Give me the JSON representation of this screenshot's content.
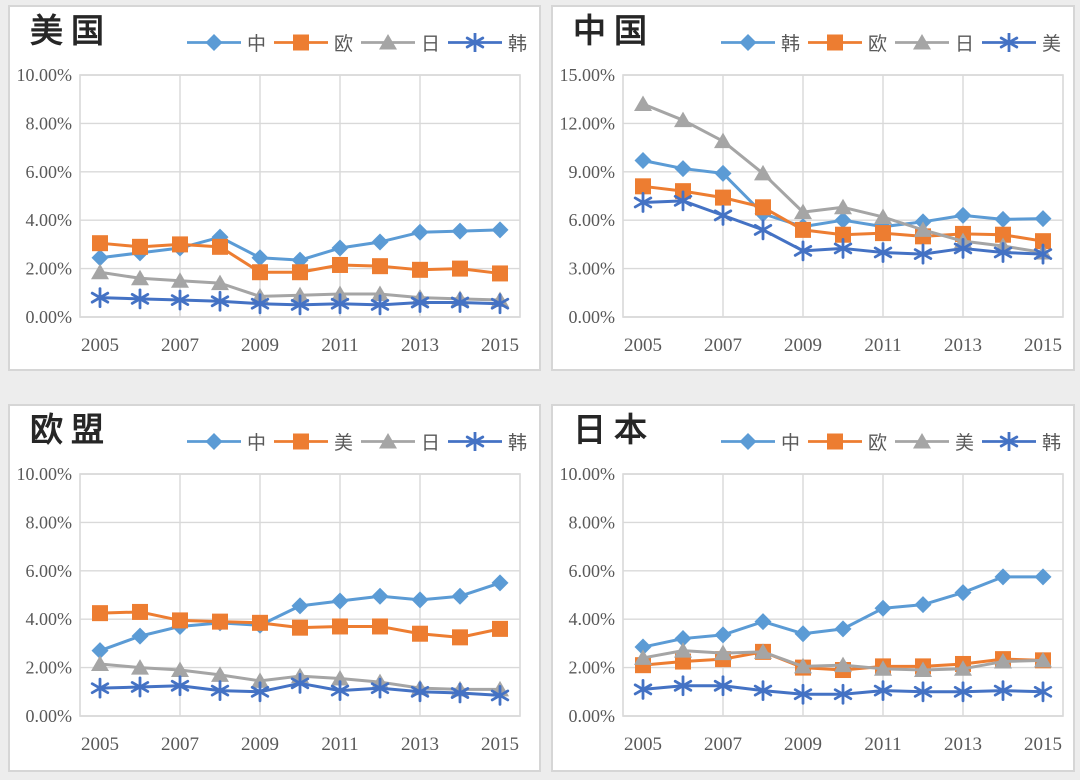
{
  "page": {
    "background_color": "#ededed",
    "panel_background": "#ffffff",
    "panel_border_color": "#d6d6d6",
    "gridline_color": "#d9d9d9",
    "axis_text_color": "#595959",
    "title_text_color": "#262626"
  },
  "chart_data": [
    {
      "panel": "top-left",
      "title": "美国",
      "type": "line",
      "grid": true,
      "legend_position": "top-right",
      "x": [
        2005,
        2006,
        2007,
        2008,
        2009,
        2010,
        2011,
        2012,
        2013,
        2014,
        2015
      ],
      "x_tick_labels": [
        "2005",
        "2007",
        "2009",
        "2011",
        "2013",
        "2015"
      ],
      "ylim": [
        0,
        10
      ],
      "y_tick_step": 2,
      "y_tick_labels": [
        "0.00%",
        "2.00%",
        "4.00%",
        "6.00%",
        "8.00%",
        "10.00%"
      ],
      "series": [
        {
          "name": "中",
          "color": "#5B9BD5",
          "marker": "diamond",
          "values": [
            2.45,
            2.65,
            2.85,
            3.3,
            2.45,
            2.35,
            2.85,
            3.1,
            3.5,
            3.55,
            3.6
          ]
        },
        {
          "name": "欧",
          "color": "#ED7D31",
          "marker": "square",
          "values": [
            3.05,
            2.9,
            3.0,
            2.9,
            1.85,
            1.85,
            2.15,
            2.1,
            1.95,
            2.0,
            1.8
          ]
        },
        {
          "name": "日",
          "color": "#A5A5A5",
          "marker": "triangle",
          "values": [
            1.85,
            1.6,
            1.5,
            1.4,
            0.85,
            0.9,
            0.95,
            0.95,
            0.8,
            0.75,
            0.7
          ]
        },
        {
          "name": "韩",
          "color": "#4472C4",
          "marker": "asterisk",
          "values": [
            0.8,
            0.75,
            0.7,
            0.65,
            0.55,
            0.5,
            0.55,
            0.5,
            0.6,
            0.6,
            0.55
          ]
        }
      ]
    },
    {
      "panel": "top-right",
      "title": "中国",
      "type": "line",
      "grid": true,
      "legend_position": "top-right",
      "x": [
        2005,
        2006,
        2007,
        2008,
        2009,
        2010,
        2011,
        2012,
        2013,
        2014,
        2015
      ],
      "x_tick_labels": [
        "2005",
        "2007",
        "2009",
        "2011",
        "2013",
        "2015"
      ],
      "ylim": [
        0,
        15
      ],
      "y_tick_step": 3,
      "y_tick_labels": [
        "0.00%",
        "3.00%",
        "6.00%",
        "9.00%",
        "12.00%",
        "15.00%"
      ],
      "series": [
        {
          "name": "韩",
          "color": "#5B9BD5",
          "marker": "diamond",
          "values": [
            9.7,
            9.2,
            8.9,
            6.4,
            5.6,
            6.0,
            5.6,
            5.9,
            6.3,
            6.05,
            6.1
          ]
        },
        {
          "name": "欧",
          "color": "#ED7D31",
          "marker": "square",
          "values": [
            8.1,
            7.8,
            7.4,
            6.8,
            5.4,
            5.1,
            5.2,
            5.0,
            5.15,
            5.1,
            4.7
          ]
        },
        {
          "name": "日",
          "color": "#A5A5A5",
          "marker": "triangle",
          "values": [
            13.2,
            12.2,
            10.9,
            8.9,
            6.5,
            6.8,
            6.2,
            5.4,
            4.7,
            4.4,
            4.0
          ]
        },
        {
          "name": "美",
          "color": "#4472C4",
          "marker": "asterisk",
          "values": [
            7.1,
            7.2,
            6.3,
            5.4,
            4.1,
            4.25,
            4.0,
            3.9,
            4.25,
            4.0,
            3.9
          ]
        }
      ]
    },
    {
      "panel": "bottom-left",
      "title": "欧盟",
      "type": "line",
      "grid": true,
      "legend_position": "top-right",
      "x": [
        2005,
        2006,
        2007,
        2008,
        2009,
        2010,
        2011,
        2012,
        2013,
        2014,
        2015
      ],
      "x_tick_labels": [
        "2005",
        "2007",
        "2009",
        "2011",
        "2013",
        "2015"
      ],
      "ylim": [
        0,
        10
      ],
      "y_tick_step": 2,
      "y_tick_labels": [
        "0.00%",
        "2.00%",
        "4.00%",
        "6.00%",
        "8.00%",
        "10.00%"
      ],
      "series": [
        {
          "name": "中",
          "color": "#5B9BD5",
          "marker": "diamond",
          "values": [
            2.7,
            3.3,
            3.7,
            3.85,
            3.75,
            4.55,
            4.75,
            4.95,
            4.8,
            4.95,
            5.5
          ]
        },
        {
          "name": "美",
          "color": "#ED7D31",
          "marker": "square",
          "values": [
            4.25,
            4.3,
            3.95,
            3.9,
            3.85,
            3.65,
            3.7,
            3.7,
            3.4,
            3.25,
            3.6
          ]
        },
        {
          "name": "日",
          "color": "#A5A5A5",
          "marker": "triangle",
          "values": [
            2.15,
            2.0,
            1.9,
            1.7,
            1.45,
            1.65,
            1.55,
            1.4,
            1.15,
            1.1,
            1.1
          ]
        },
        {
          "name": "韩",
          "color": "#4472C4",
          "marker": "asterisk",
          "values": [
            1.15,
            1.2,
            1.25,
            1.05,
            1.0,
            1.35,
            1.05,
            1.15,
            1.0,
            0.95,
            0.85
          ]
        }
      ]
    },
    {
      "panel": "bottom-right",
      "title": "日本",
      "type": "line",
      "grid": true,
      "legend_position": "top-right",
      "x": [
        2005,
        2006,
        2007,
        2008,
        2009,
        2010,
        2011,
        2012,
        2013,
        2014,
        2015
      ],
      "x_tick_labels": [
        "2005",
        "2007",
        "2009",
        "2011",
        "2013",
        "2015"
      ],
      "ylim": [
        0,
        10
      ],
      "y_tick_step": 2,
      "y_tick_labels": [
        "0.00%",
        "2.00%",
        "4.00%",
        "6.00%",
        "8.00%",
        "10.00%"
      ],
      "series": [
        {
          "name": "中",
          "color": "#5B9BD5",
          "marker": "diamond",
          "values": [
            2.85,
            3.2,
            3.35,
            3.9,
            3.4,
            3.6,
            4.45,
            4.6,
            5.1,
            5.75,
            5.75
          ]
        },
        {
          "name": "欧",
          "color": "#ED7D31",
          "marker": "square",
          "values": [
            2.1,
            2.25,
            2.35,
            2.65,
            2.0,
            1.9,
            2.05,
            2.05,
            2.15,
            2.35,
            2.3
          ]
        },
        {
          "name": "美",
          "color": "#A5A5A5",
          "marker": "triangle",
          "values": [
            2.4,
            2.7,
            2.6,
            2.65,
            2.05,
            2.1,
            1.95,
            1.9,
            1.95,
            2.25,
            2.3
          ]
        },
        {
          "name": "韩",
          "color": "#4472C4",
          "marker": "asterisk",
          "values": [
            1.1,
            1.25,
            1.25,
            1.05,
            0.9,
            0.9,
            1.05,
            1.0,
            1.0,
            1.05,
            1.0
          ]
        }
      ]
    }
  ]
}
